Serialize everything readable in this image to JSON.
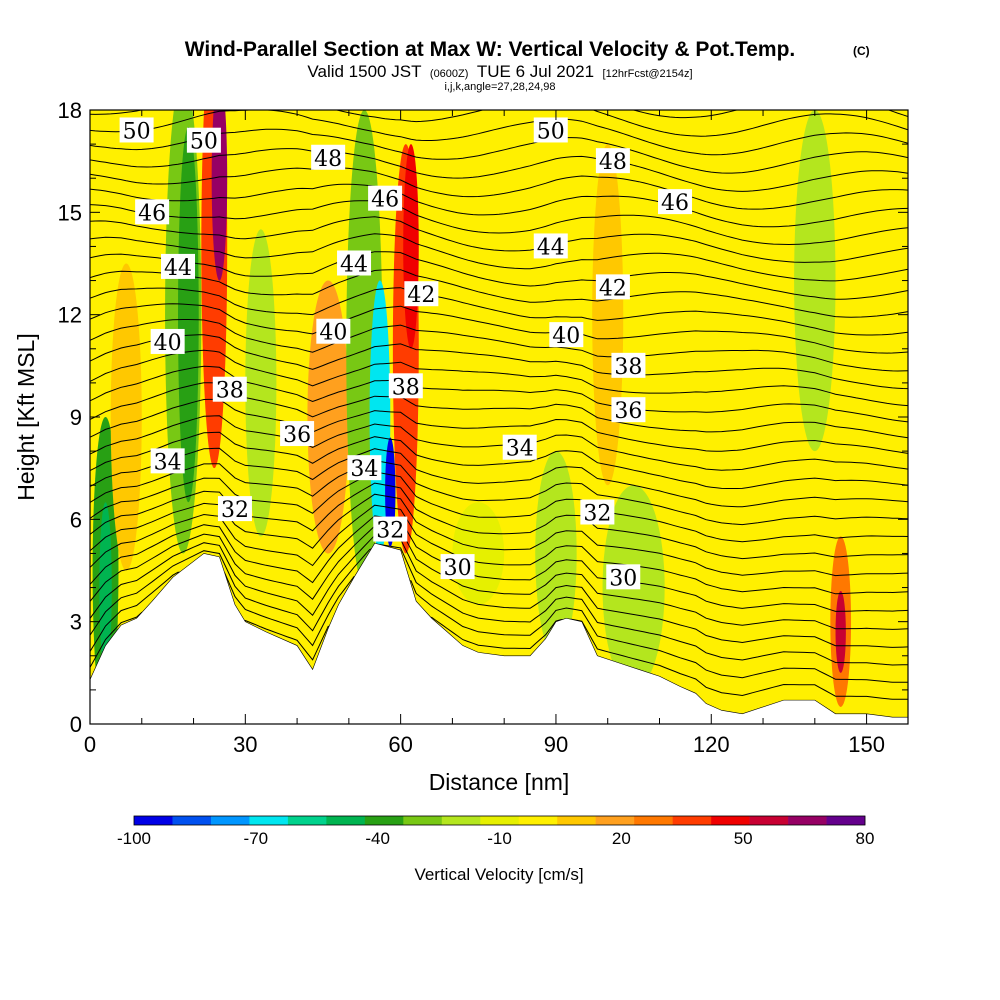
{
  "title": {
    "main": "Wind-Parallel Section at Max W: Vertical Velocity & Pot.Temp.",
    "copyright": "(C)",
    "valid_prefix": "Valid 1500 JST",
    "valid_utc": "(0600Z)",
    "valid_date": "TUE 6 Jul 2021",
    "forecast": "[12hrFcst@2154z]",
    "grid": "i,j,k,angle=27,28,24,98"
  },
  "chart_data": {
    "type": "heatmap",
    "xlabel": "Distance [nm]",
    "ylabel": "Height [Kft MSL]",
    "xlim": [
      0,
      158
    ],
    "ylim": [
      0,
      18
    ],
    "x_ticks": [
      0,
      30,
      60,
      90,
      120,
      150
    ],
    "y_ticks": [
      0,
      3,
      6,
      9,
      12,
      15,
      18
    ],
    "colorbar": {
      "label": "Vertical Velocity [cm/s]",
      "tick_labels": [
        -100,
        -70,
        -40,
        -10,
        20,
        50,
        80
      ],
      "levels": [
        -100,
        -90,
        -80,
        -70,
        -60,
        -50,
        -40,
        -30,
        -20,
        -10,
        0,
        10,
        20,
        30,
        40,
        50,
        60,
        70,
        80
      ],
      "colors": [
        "#0000e6",
        "#0050f0",
        "#0096ff",
        "#00e6f0",
        "#00d28c",
        "#00b450",
        "#28a014",
        "#78c814",
        "#b4e61e",
        "#e6f000",
        "#fff000",
        "#ffc800",
        "#ffa01e",
        "#ff7800",
        "#ff3c00",
        "#f00000",
        "#c80032",
        "#960064",
        "#64008c"
      ]
    },
    "background_level_color": "#fff000",
    "terrain_kft": [
      [
        0,
        1.3
      ],
      [
        3,
        2.3
      ],
      [
        6,
        2.9
      ],
      [
        9,
        3.1
      ],
      [
        12,
        3.6
      ],
      [
        16,
        4.3
      ],
      [
        22,
        5.0
      ],
      [
        25,
        4.9
      ],
      [
        28,
        3.5
      ],
      [
        30,
        3.0
      ],
      [
        34,
        2.7
      ],
      [
        40,
        2.3
      ],
      [
        43,
        1.6
      ],
      [
        46,
        2.8
      ],
      [
        48,
        3.5
      ],
      [
        51,
        4.3
      ],
      [
        55,
        5.3
      ],
      [
        60,
        5.1
      ],
      [
        63,
        3.6
      ],
      [
        66,
        3.1
      ],
      [
        69,
        2.7
      ],
      [
        72,
        2.3
      ],
      [
        75,
        2.1
      ],
      [
        80,
        2.0
      ],
      [
        85,
        2.0
      ],
      [
        88,
        2.5
      ],
      [
        90,
        3.0
      ],
      [
        92,
        3.1
      ],
      [
        95,
        3.0
      ],
      [
        98,
        2.0
      ],
      [
        102,
        1.8
      ],
      [
        106,
        1.6
      ],
      [
        110,
        1.4
      ],
      [
        114,
        1.1
      ],
      [
        117,
        0.9
      ],
      [
        119,
        0.6
      ],
      [
        122,
        0.4
      ],
      [
        126,
        0.3
      ],
      [
        134,
        0.7
      ],
      [
        140,
        0.7
      ],
      [
        144,
        0.3
      ],
      [
        150,
        0.3
      ],
      [
        155,
        0.2
      ],
      [
        158,
        0.2
      ]
    ],
    "vv_field": [
      {
        "xc": 3,
        "yc": 4.5,
        "rx": 2.5,
        "ry": 4.5,
        "value": -40
      },
      {
        "xc": 3,
        "yc": 4.0,
        "rx": 1.2,
        "ry": 2.5,
        "value": -50
      },
      {
        "xc": 7,
        "yc": 9.0,
        "rx": 3.0,
        "ry": 4.5,
        "value": 10
      },
      {
        "xc": 18,
        "yc": 12,
        "rx": 3.5,
        "ry": 7.0,
        "value": -30
      },
      {
        "xc": 19,
        "yc": 12,
        "rx": 2.0,
        "ry": 5.5,
        "value": -40
      },
      {
        "xc": 24,
        "yc": 14,
        "rx": 2.5,
        "ry": 6.5,
        "value": 40
      },
      {
        "xc": 25,
        "yc": 16,
        "rx": 1.5,
        "ry": 3.0,
        "value": 70
      },
      {
        "xc": 33,
        "yc": 10,
        "rx": 3.0,
        "ry": 4.5,
        "value": -20
      },
      {
        "xc": 46,
        "yc": 9,
        "rx": 4.0,
        "ry": 4.0,
        "value": 20
      },
      {
        "xc": 53,
        "yc": 11,
        "rx": 3.5,
        "ry": 7.0,
        "value": -30
      },
      {
        "xc": 56,
        "yc": 9,
        "rx": 2.0,
        "ry": 4.0,
        "value": -70
      },
      {
        "xc": 58,
        "yc": 6.8,
        "rx": 1.0,
        "ry": 1.6,
        "value": -100
      },
      {
        "xc": 61,
        "yc": 11,
        "rx": 2.5,
        "ry": 6.0,
        "value": 40
      },
      {
        "xc": 62,
        "yc": 14,
        "rx": 1.5,
        "ry": 3.0,
        "value": 50
      },
      {
        "xc": 75,
        "yc": 5,
        "rx": 5.0,
        "ry": 1.5,
        "value": -10
      },
      {
        "xc": 90,
        "yc": 5,
        "rx": 4.0,
        "ry": 3.0,
        "value": -20
      },
      {
        "xc": 105,
        "yc": 4,
        "rx": 6.0,
        "ry": 3.0,
        "value": -20
      },
      {
        "xc": 100,
        "yc": 12,
        "rx": 3.0,
        "ry": 5.0,
        "value": 10
      },
      {
        "xc": 140,
        "yc": 13,
        "rx": 4.0,
        "ry": 5.0,
        "value": -20
      },
      {
        "xc": 145,
        "yc": 3,
        "rx": 2.0,
        "ry": 2.5,
        "value": 30
      },
      {
        "xc": 145,
        "yc": 2.7,
        "rx": 1.0,
        "ry": 1.2,
        "value": 60
      }
    ],
    "theta_labels": [
      {
        "text": "50",
        "x": 9,
        "y": 17.4
      },
      {
        "text": "50",
        "x": 22,
        "y": 17.1
      },
      {
        "text": "48",
        "x": 46,
        "y": 16.6
      },
      {
        "text": "46",
        "x": 12,
        "y": 15.0
      },
      {
        "text": "46",
        "x": 57,
        "y": 15.4
      },
      {
        "text": "44",
        "x": 17,
        "y": 13.4
      },
      {
        "text": "44",
        "x": 51,
        "y": 13.5
      },
      {
        "text": "42",
        "x": 64,
        "y": 12.6
      },
      {
        "text": "40",
        "x": 15,
        "y": 11.2
      },
      {
        "text": "40",
        "x": 47,
        "y": 11.5
      },
      {
        "text": "38",
        "x": 27,
        "y": 9.8
      },
      {
        "text": "38",
        "x": 61,
        "y": 9.9
      },
      {
        "text": "36",
        "x": 40,
        "y": 8.5
      },
      {
        "text": "34",
        "x": 15,
        "y": 7.7
      },
      {
        "text": "34",
        "x": 53,
        "y": 7.5
      },
      {
        "text": "32",
        "x": 28,
        "y": 6.3
      },
      {
        "text": "32",
        "x": 58,
        "y": 5.7
      },
      {
        "text": "30",
        "x": 71,
        "y": 4.6
      },
      {
        "text": "50",
        "x": 89,
        "y": 17.4
      },
      {
        "text": "48",
        "x": 101,
        "y": 16.5
      },
      {
        "text": "46",
        "x": 113,
        "y": 15.3
      },
      {
        "text": "44",
        "x": 89,
        "y": 14.0
      },
      {
        "text": "42",
        "x": 101,
        "y": 12.8
      },
      {
        "text": "40",
        "x": 92,
        "y": 11.4
      },
      {
        "text": "38",
        "x": 104,
        "y": 10.5
      },
      {
        "text": "36",
        "x": 104,
        "y": 9.2
      },
      {
        "text": "34",
        "x": 83,
        "y": 8.1
      },
      {
        "text": "32",
        "x": 98,
        "y": 6.2
      },
      {
        "text": "30",
        "x": 103,
        "y": 4.3
      }
    ]
  }
}
